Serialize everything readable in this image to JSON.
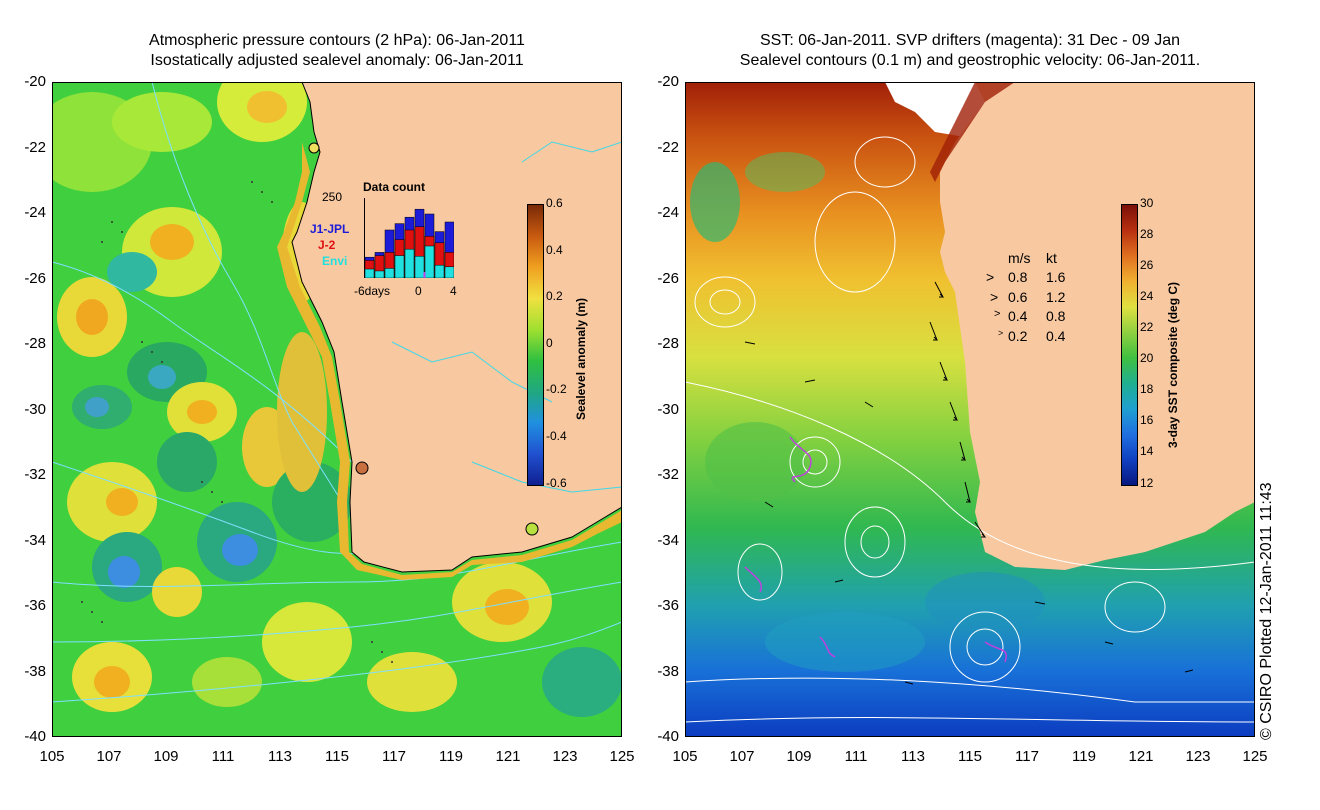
{
  "left_title": {
    "line1": "Atmospheric pressure contours (2 hPa): 06-Jan-2011",
    "line2": "Isostatically adjusted sealevel anomaly: 06-Jan-2011"
  },
  "right_title": {
    "line1": "SST: 06-Jan-2011. SVP drifters (magenta): 31 Dec - 09 Jan",
    "line2": "Sealevel contours (0.1 m) and geostrophic velocity: 06-Jan-2011."
  },
  "axes": {
    "lat_labels": [
      "-20",
      "-22",
      "-24",
      "-26",
      "-28",
      "-30",
      "-32",
      "-34",
      "-36",
      "-38",
      "-40"
    ],
    "lon_labels": [
      "105",
      "107",
      "109",
      "111",
      "113",
      "115",
      "117",
      "119",
      "121",
      "123",
      "125"
    ]
  },
  "left_colorbar": {
    "title": "Sealevel anomaly (m)",
    "ticks": [
      "0.6",
      "0.4",
      "0.2",
      "0",
      "-0.2",
      "-0.4",
      "-0.6"
    ]
  },
  "right_colorbar": {
    "title": "3-day SST composite (deg C)",
    "ticks": [
      "30",
      "28",
      "26",
      "24",
      "22",
      "20",
      "18",
      "16",
      "14",
      "12"
    ]
  },
  "inset": {
    "title": "Data count",
    "max_label": "250",
    "series": [
      {
        "name": "J1-JPL",
        "color": "#1c1cd8"
      },
      {
        "name": "J-2",
        "color": "#e01010"
      },
      {
        "name": "Envi",
        "color": "#20e0e0"
      }
    ],
    "x_left": "-6days",
    "x_mid": "0",
    "x_right": "4",
    "bar_totals": [
      65,
      80,
      150,
      170,
      190,
      215,
      200,
      145,
      175
    ],
    "bar_envi": [
      28,
      22,
      30,
      70,
      90,
      68,
      100,
      40,
      35
    ],
    "bar_j2": [
      55,
      70,
      80,
      120,
      150,
      160,
      130,
      110,
      80
    ]
  },
  "velocity_legend": {
    "header_ms": "m/s",
    "header_kt": "kt",
    "rows": [
      {
        "ms": "0.8",
        "kt": "1.6"
      },
      {
        "ms": "0.6",
        "kt": "1.2"
      },
      {
        "ms": "0.4",
        "kt": "0.8"
      },
      {
        "ms": "0.2",
        "kt": "0.4"
      }
    ]
  },
  "copyright": "© CSIRO Plotted 12-Jan-2011 11:43"
}
